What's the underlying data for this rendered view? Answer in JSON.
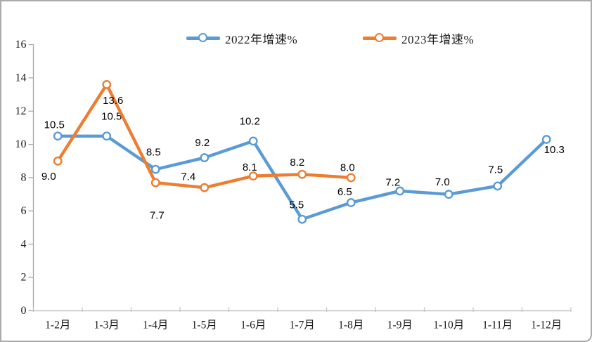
{
  "legend": {
    "items": [
      {
        "label": "2022年增速%",
        "color": "#5B9BD5"
      },
      {
        "label": "2023年增速%",
        "color": "#ED7D31"
      }
    ]
  },
  "chart_data": {
    "type": "line",
    "title": "",
    "xlabel": "",
    "ylabel": "",
    "categories": [
      "1-2月",
      "1-3月",
      "1-4月",
      "1-5月",
      "1-6月",
      "1-7月",
      "1-8月",
      "1-9月",
      "1-10月",
      "1-11月",
      "1-12月"
    ],
    "series": [
      {
        "name": "2022年增速%",
        "color": "#5B9BD5",
        "values": [
          10.5,
          10.5,
          8.5,
          9.2,
          10.2,
          5.5,
          6.5,
          7.2,
          7.0,
          7.5,
          10.3
        ],
        "labels": [
          "10.5",
          "10.5",
          "8.5",
          "9.2",
          "10.2",
          "5.5",
          "6.5",
          "7.2",
          "7.0",
          "7.5",
          "10.3"
        ]
      },
      {
        "name": "2023年增速%",
        "color": "#ED7D31",
        "values": [
          9.0,
          13.6,
          7.7,
          7.4,
          8.1,
          8.2,
          8.0
        ],
        "labels": [
          "9.0",
          "13.6",
          "7.7",
          "7.4",
          "8.1",
          "8.2",
          "8.0"
        ]
      }
    ],
    "ylim": [
      0,
      16
    ],
    "y_ticks": [
      0,
      2,
      4,
      6,
      8,
      10,
      12,
      14,
      16
    ],
    "grid": false,
    "legend_position": "top",
    "marker": "open-circle",
    "axis_color": "#A6A6A6",
    "x_axis_line_color": "#C6C6C6",
    "text_color": "#1a1a1a",
    "frame_border_color": "#ABABAB"
  }
}
